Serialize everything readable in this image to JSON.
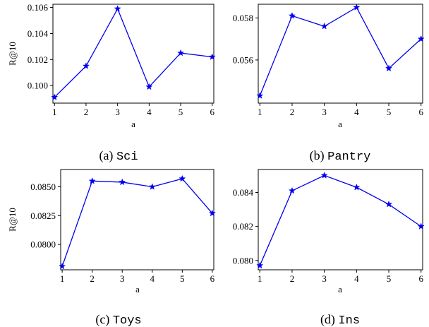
{
  "chart_data": [
    {
      "type": "line",
      "caption_prefix": "(a) ",
      "caption_name": "Sci",
      "xlabel": "a",
      "ylabel": "R@10",
      "x": [
        1,
        2,
        3,
        4,
        5,
        6
      ],
      "values": [
        0.0991,
        0.1015,
        0.1059,
        0.0999,
        0.1025,
        0.1022
      ],
      "xticks": [
        "1",
        "2",
        "3",
        "4",
        "5",
        "6"
      ],
      "yticks": [
        0.1,
        0.102,
        0.104,
        0.106
      ],
      "ytick_labels": [
        "0.100",
        "0.102",
        "0.104",
        "0.106"
      ],
      "ylim": [
        0.09865,
        0.10625
      ],
      "xlim": [
        0.95,
        6.05
      ],
      "grid": false,
      "color": "#0000ee",
      "marker": "star"
    },
    {
      "type": "line",
      "caption_prefix": "(b) ",
      "caption_name": "Pantry",
      "xlabel": "a",
      "ylabel": "",
      "x": [
        1,
        2,
        3,
        4,
        5,
        6
      ],
      "values": [
        0.0543,
        0.0581,
        0.0576,
        0.0585,
        0.0556,
        0.057
      ],
      "xticks": [
        "1",
        "2",
        "3",
        "4",
        "5",
        "6"
      ],
      "yticks": [
        0.056,
        0.058
      ],
      "ytick_labels": [
        "0.056",
        "0.058"
      ],
      "ylim": [
        0.05395,
        0.05865
      ],
      "xlim": [
        0.95,
        6.05
      ],
      "grid": false,
      "color": "#0000ee",
      "marker": "star"
    },
    {
      "type": "line",
      "caption_prefix": "(c) ",
      "caption_name": "Toys",
      "xlabel": "a",
      "ylabel": "R@10",
      "x": [
        1,
        2,
        3,
        4,
        5,
        6
      ],
      "values": [
        0.0781,
        0.0855,
        0.0854,
        0.085,
        0.0857,
        0.0827
      ],
      "xticks": [
        "1",
        "2",
        "3",
        "4",
        "5",
        "6"
      ],
      "yticks": [
        0.08,
        0.0825,
        0.085
      ],
      "ytick_labels": [
        "0.0800",
        "0.0825",
        "0.0850"
      ],
      "ylim": [
        0.0778,
        0.0865
      ],
      "xlim": [
        0.95,
        6.05
      ],
      "grid": false,
      "color": "#0000ee",
      "marker": "star"
    },
    {
      "type": "line",
      "caption_prefix": "(d) ",
      "caption_name": "Ins",
      "xlabel": "a",
      "ylabel": "",
      "x": [
        1,
        2,
        3,
        4,
        5,
        6
      ],
      "values": [
        0.0797,
        0.0841,
        0.085,
        0.0843,
        0.0833,
        0.082
      ],
      "xticks": [
        "1",
        "2",
        "3",
        "4",
        "5",
        "6"
      ],
      "yticks": [
        0.08,
        0.082,
        0.084
      ],
      "ytick_labels": [
        "0.080",
        "0.082",
        "0.084"
      ],
      "ylim": [
        0.07945,
        0.08535
      ],
      "xlim": [
        0.95,
        6.05
      ],
      "grid": false,
      "color": "#0000ee",
      "marker": "star"
    }
  ]
}
